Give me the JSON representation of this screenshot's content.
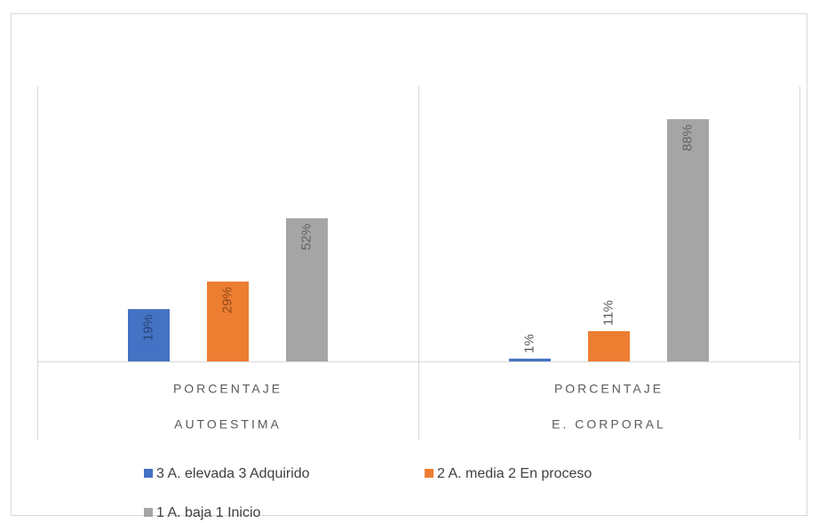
{
  "chart_data": {
    "type": "bar",
    "categories": [
      "AUTOESTIMA",
      "E. CORPORAL"
    ],
    "subcategories": [
      "PORCENTAJE",
      "PORCENTAJE"
    ],
    "series": [
      {
        "name": "3 A. elevada 3 Adquirido",
        "color": "#4472c4",
        "values": [
          19,
          1
        ],
        "value_labels": [
          "19%",
          "1%"
        ]
      },
      {
        "name": "2 A. media 2 En proceso",
        "color": "#ed7d31",
        "values": [
          29,
          11
        ],
        "value_labels": [
          "29%",
          "11%"
        ]
      },
      {
        "name": "1 A. baja 1 Inicio",
        "color": "#a5a5a5",
        "values": [
          52,
          88
        ],
        "value_labels": [
          "52%",
          "88%"
        ]
      }
    ],
    "ylim": [
      0,
      100
    ],
    "legend": "bottom"
  }
}
